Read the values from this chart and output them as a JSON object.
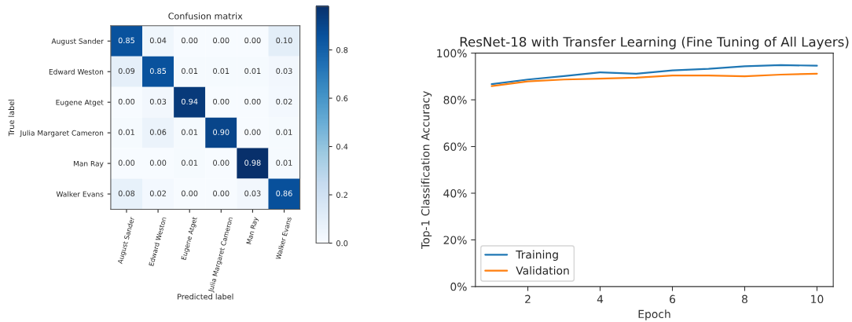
{
  "chart_data": [
    {
      "type": "heatmap",
      "title": "Confusion matrix",
      "xlabel": "Predicted label",
      "ylabel": "True label",
      "categories": [
        "August Sander",
        "Edward Weston",
        "Eugene Atget",
        "Julia Margaret Cameron",
        "Man Ray",
        "Walker Evans"
      ],
      "y_categories": [
        "August Sander",
        "Edward Weston",
        "Eugene Atget",
        "Julia Margaret Cameron",
        "Man Ray",
        "Walker Evans"
      ],
      "cells": [
        [
          0.85,
          0.04,
          0.0,
          0.0,
          0.0,
          0.1
        ],
        [
          0.09,
          0.85,
          0.01,
          0.01,
          0.01,
          0.03
        ],
        [
          0.0,
          0.03,
          0.94,
          0.0,
          0.0,
          0.02
        ],
        [
          0.01,
          0.06,
          0.01,
          0.9,
          0.0,
          0.01
        ],
        [
          0.0,
          0.0,
          0.01,
          0.0,
          0.98,
          0.01
        ],
        [
          0.08,
          0.02,
          0.0,
          0.0,
          0.03,
          0.86
        ]
      ],
      "cell_labels": [
        [
          "0.85",
          "0.04",
          "0.00",
          "0.00",
          "0.00",
          "0.10"
        ],
        [
          "0.09",
          "0.85",
          "0.01",
          "0.01",
          "0.01",
          "0.03"
        ],
        [
          "0.00",
          "0.03",
          "0.94",
          "0.00",
          "0.00",
          "0.02"
        ],
        [
          "0.01",
          "0.06",
          "0.01",
          "0.90",
          "0.00",
          "0.01"
        ],
        [
          "0.00",
          "0.00",
          "0.01",
          "0.00",
          "0.98",
          "0.01"
        ],
        [
          "0.08",
          "0.02",
          "0.00",
          "0.00",
          "0.03",
          "0.86"
        ]
      ],
      "clim": [
        0,
        0.98
      ],
      "cticks": [
        {
          "value": 0,
          "label": "0.0"
        },
        {
          "value": 0.2,
          "label": "0.2"
        },
        {
          "value": 0.4,
          "label": "0.4"
        },
        {
          "value": 0.6,
          "label": "0.6"
        },
        {
          "value": 0.8,
          "label": "0.8"
        }
      ]
    },
    {
      "type": "line",
      "title": "ResNet-18 with Transfer Learning (Fine Tuning of All Layers)",
      "xlabel": "Epoch",
      "ylabel": "Top-1 Classification Accuracy",
      "x": [
        1,
        2,
        3,
        4,
        5,
        6,
        7,
        8,
        9,
        10
      ],
      "series": [
        {
          "name": "Training",
          "color": "#1f77b4",
          "values": [
            86.7,
            88.7,
            90.2,
            91.8,
            91.2,
            92.6,
            93.3,
            94.4,
            94.9,
            94.6
          ]
        },
        {
          "name": "Validation",
          "color": "#ff7f0e",
          "values": [
            85.9,
            87.9,
            88.7,
            89.1,
            89.5,
            90.4,
            90.4,
            90.1,
            90.8,
            91.2
          ]
        }
      ],
      "xlim": [
        0.55,
        10.45
      ],
      "xticks": [
        2,
        4,
        6,
        8,
        10
      ],
      "ylim": [
        0,
        100
      ],
      "yticks": [
        {
          "value": 0,
          "label": "0%"
        },
        {
          "value": 20,
          "label": "20%"
        },
        {
          "value": 40,
          "label": "40%"
        },
        {
          "value": 60,
          "label": "60%"
        },
        {
          "value": 80,
          "label": "80%"
        },
        {
          "value": 100,
          "label": "100%"
        }
      ],
      "grid": false,
      "legend": "bottom left"
    }
  ]
}
